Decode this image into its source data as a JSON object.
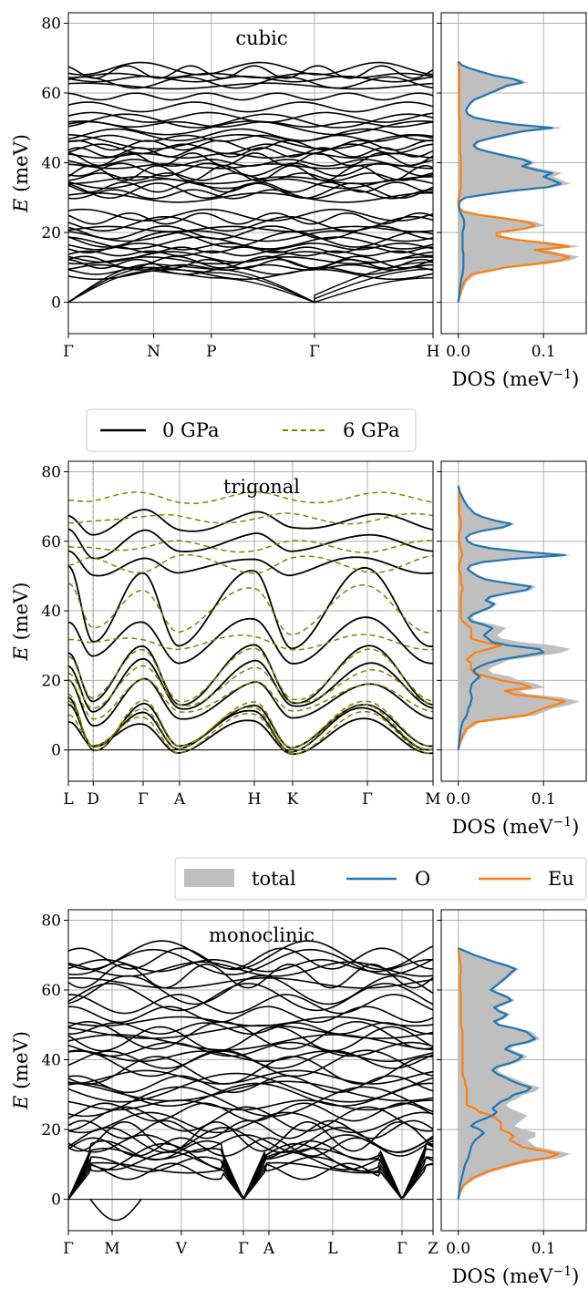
{
  "figure": {
    "energy_axis_label": "E (meV)",
    "dos_axis_label": "DOS (meV",
    "dos_axis_label_sup": "−1",
    "dos_axis_label_end": ")"
  },
  "legends": {
    "pressure": {
      "entries": [
        "0 GPa",
        "6 GPa"
      ]
    },
    "dos": {
      "entries": [
        "total",
        "O",
        "Eu"
      ]
    }
  },
  "colors": {
    "band_0gpa": "#000000",
    "band_6gpa": "#808000",
    "dos_total": "#bfbfbf",
    "dos_O": "#1f77b4",
    "dos_Eu": "#ff7f0e",
    "grid": "#b0b0b0"
  },
  "chart_data": [
    {
      "type": "line",
      "title": "cubic",
      "ylabel": "E (meV)",
      "ylim": [
        -9,
        83
      ],
      "yticks": [
        0,
        20,
        40,
        60,
        80
      ],
      "grid": true,
      "high_symmetry_points": [
        {
          "label": "Γ",
          "k": 0.0
        },
        {
          "label": "N",
          "k": 0.234
        },
        {
          "label": "P",
          "k": 0.392
        },
        {
          "label": "Γ",
          "k": 0.675
        },
        {
          "label": "H",
          "k": 1.0
        }
      ],
      "flat_band_energies_meV": [
        8,
        9,
        10,
        11,
        11.5,
        12,
        13,
        14,
        15,
        16,
        17,
        18,
        19,
        20,
        21,
        22.5,
        24,
        25,
        30,
        31,
        32,
        33,
        34,
        35,
        36,
        37,
        38,
        39,
        40,
        41,
        42,
        43,
        44,
        45,
        46,
        47,
        48,
        50,
        51,
        52,
        53,
        56,
        59,
        62,
        63,
        64,
        65,
        66,
        67
      ],
      "acoustic_branches": "three acoustic modes rising from 0 meV at Γ to about 9–11 meV at N and P",
      "dos": {
        "xlabel": "DOS (meV⁻¹)",
        "xlim": [
          -0.02,
          0.15
        ],
        "xticks": [
          0.0,
          0.1
        ],
        "energy_meV": [
          0,
          2,
          4,
          6,
          8,
          10,
          11,
          12,
          13,
          14,
          15,
          16,
          17,
          18,
          19,
          20,
          21,
          22,
          23,
          24,
          25,
          26,
          27,
          28,
          29,
          30,
          31,
          32,
          33,
          34,
          35,
          36,
          37,
          38,
          39,
          40,
          41,
          42,
          43,
          44,
          45,
          46,
          47,
          48,
          49,
          50,
          51,
          52,
          53,
          54,
          55,
          56,
          57,
          58,
          59,
          60,
          61,
          62,
          63,
          64,
          65,
          66,
          67,
          68,
          69
        ],
        "total": [
          0,
          0.003,
          0.006,
          0.01,
          0.02,
          0.06,
          0.1,
          0.13,
          0.14,
          0.12,
          0.1,
          0.14,
          0.11,
          0.07,
          0.05,
          0.05,
          0.08,
          0.1,
          0.09,
          0.06,
          0.03,
          0.008,
          0.002,
          0.001,
          0.002,
          0.01,
          0.04,
          0.07,
          0.11,
          0.13,
          0.12,
          0.11,
          0.12,
          0.1,
          0.08,
          0.09,
          0.08,
          0.06,
          0.04,
          0.025,
          0.02,
          0.025,
          0.04,
          0.06,
          0.08,
          0.12,
          0.07,
          0.04,
          0.02,
          0.012,
          0.01,
          0.012,
          0.015,
          0.02,
          0.03,
          0.04,
          0.05,
          0.06,
          0.08,
          0.07,
          0.045,
          0.03,
          0.015,
          0.005,
          0
        ],
        "O": [
          0,
          0.001,
          0.002,
          0.003,
          0.005,
          0.006,
          0.006,
          0.006,
          0.006,
          0.006,
          0.005,
          0.005,
          0.005,
          0.005,
          0.005,
          0.005,
          0.006,
          0.007,
          0.007,
          0.006,
          0.004,
          0.002,
          0.001,
          0.001,
          0.002,
          0.008,
          0.035,
          0.065,
          0.105,
          0.12,
          0.11,
          0.1,
          0.11,
          0.09,
          0.075,
          0.085,
          0.075,
          0.055,
          0.038,
          0.022,
          0.018,
          0.022,
          0.037,
          0.055,
          0.075,
          0.11,
          0.066,
          0.038,
          0.018,
          0.011,
          0.009,
          0.011,
          0.014,
          0.018,
          0.028,
          0.037,
          0.047,
          0.056,
          0.075,
          0.065,
          0.042,
          0.028,
          0.014,
          0.004,
          0
        ],
        "Eu": [
          0,
          0.002,
          0.004,
          0.007,
          0.015,
          0.055,
          0.09,
          0.12,
          0.13,
          0.11,
          0.09,
          0.13,
          0.1,
          0.065,
          0.045,
          0.045,
          0.075,
          0.09,
          0.08,
          0.055,
          0.025,
          0.006,
          0.001,
          0,
          0,
          0.001,
          0.002,
          0.002,
          0.003,
          0.003,
          0.003,
          0.003,
          0.003,
          0.003,
          0.003,
          0.003,
          0.003,
          0.003,
          0.002,
          0.002,
          0.002,
          0.002,
          0.002,
          0.002,
          0.002,
          0.002,
          0.002,
          0.002,
          0.001,
          0.001,
          0.001,
          0.001,
          0.001,
          0.001,
          0.001,
          0.001,
          0.001,
          0.001,
          0.001,
          0.001,
          0.001,
          0.001,
          0.001,
          0,
          0
        ]
      }
    },
    {
      "type": "line",
      "title": "trigonal",
      "ylabel": "E (meV)",
      "ylim": [
        -9,
        83
      ],
      "yticks": [
        0,
        20,
        40,
        60,
        80
      ],
      "grid": true,
      "high_symmetry_points": [
        {
          "label": "L",
          "k": 0.0
        },
        {
          "label": "D",
          "k": 0.068
        },
        {
          "label": "Γ",
          "k": 0.205
        },
        {
          "label": "A",
          "k": 0.305
        },
        {
          "label": "H",
          "k": 0.51
        },
        {
          "label": "K",
          "k": 0.615
        },
        {
          "label": "Γ",
          "k": 0.82
        },
        {
          "label": "M",
          "k": 1.0
        }
      ],
      "series": [
        {
          "name": "0 GPa",
          "style": "solid"
        },
        {
          "name": "6 GPa",
          "style": "dashed"
        }
      ],
      "band_anchor_energies_meV": {
        "0 GPa": [
          [
            8,
            12,
            14,
            20,
            25,
            29,
            37,
            52,
            56,
            63,
            68
          ],
          [
            0,
            0,
            0,
            8,
            12,
            14,
            26,
            30,
            50,
            56,
            63
          ]
        ],
        "6 GPa": [
          [
            10,
            13,
            15,
            20,
            23,
            28,
            32,
            47,
            52,
            58,
            66,
            73
          ],
          [
            0,
            0,
            0,
            10,
            13,
            15,
            30,
            34,
            55,
            59,
            67,
            72
          ]
        ]
      },
      "dos": {
        "xlabel": "DOS (meV⁻¹)",
        "xlim": [
          -0.02,
          0.15
        ],
        "xticks": [
          0.0,
          0.1
        ],
        "energy_meV": [
          0,
          2,
          4,
          6,
          8,
          10,
          12,
          13,
          14,
          15,
          16,
          17,
          18,
          19,
          20,
          21,
          22,
          23,
          24,
          25,
          26,
          27,
          28,
          29,
          30,
          31,
          32,
          33,
          34,
          35,
          36,
          37,
          38,
          39,
          40,
          41,
          42,
          43,
          44,
          45,
          46,
          47,
          48,
          49,
          50,
          51,
          52,
          53,
          54,
          55,
          56,
          57,
          58,
          59,
          60,
          61,
          62,
          63,
          64,
          65,
          66,
          67,
          68,
          70,
          72,
          74,
          76
        ],
        "total": [
          0,
          0.003,
          0.007,
          0.012,
          0.025,
          0.09,
          0.11,
          0.13,
          0.14,
          0.12,
          0.08,
          0.07,
          0.1,
          0.09,
          0.07,
          0.06,
          0.04,
          0.035,
          0.04,
          0.05,
          0.06,
          0.09,
          0.12,
          0.13,
          0.11,
          0.07,
          0.05,
          0.045,
          0.05,
          0.055,
          0.04,
          0.02,
          0.015,
          0.02,
          0.03,
          0.04,
          0.045,
          0.035,
          0.04,
          0.06,
          0.085,
          0.09,
          0.06,
          0.035,
          0.025,
          0.018,
          0.012,
          0.015,
          0.03,
          0.07,
          0.13,
          0.08,
          0.04,
          0.02,
          0.012,
          0.01,
          0.015,
          0.03,
          0.055,
          0.065,
          0.045,
          0.03,
          0.02,
          0.012,
          0.007,
          0.003,
          0
        ],
        "O": [
          0,
          0.001,
          0.002,
          0.003,
          0.005,
          0.01,
          0.012,
          0.014,
          0.015,
          0.016,
          0.015,
          0.014,
          0.015,
          0.016,
          0.02,
          0.025,
          0.02,
          0.018,
          0.025,
          0.035,
          0.05,
          0.075,
          0.1,
          0.095,
          0.06,
          0.04,
          0.035,
          0.03,
          0.035,
          0.04,
          0.03,
          0.015,
          0.012,
          0.017,
          0.027,
          0.037,
          0.042,
          0.032,
          0.037,
          0.057,
          0.08,
          0.085,
          0.057,
          0.032,
          0.022,
          0.016,
          0.011,
          0.014,
          0.028,
          0.067,
          0.125,
          0.076,
          0.037,
          0.018,
          0.011,
          0.009,
          0.014,
          0.028,
          0.052,
          0.062,
          0.042,
          0.028,
          0.019,
          0.011,
          0.006,
          0.002,
          0
        ],
        "Eu": [
          0,
          0.002,
          0.005,
          0.009,
          0.02,
          0.08,
          0.1,
          0.115,
          0.125,
          0.1,
          0.065,
          0.055,
          0.085,
          0.075,
          0.05,
          0.035,
          0.02,
          0.015,
          0.015,
          0.015,
          0.01,
          0.015,
          0.02,
          0.035,
          0.05,
          0.03,
          0.015,
          0.015,
          0.015,
          0.015,
          0.01,
          0.005,
          0.003,
          0.003,
          0.003,
          0.003,
          0.003,
          0.003,
          0.003,
          0.003,
          0.005,
          0.005,
          0.003,
          0.003,
          0.003,
          0.002,
          0.001,
          0.001,
          0.002,
          0.003,
          0.005,
          0.004,
          0.003,
          0.002,
          0.001,
          0.001,
          0.001,
          0.002,
          0.003,
          0.003,
          0.003,
          0.002,
          0.001,
          0.001,
          0.001,
          0.001,
          0
        ]
      }
    },
    {
      "type": "line",
      "title": "monoclinic",
      "ylabel": "E (meV)",
      "ylim": [
        -9,
        83
      ],
      "yticks": [
        0,
        20,
        40,
        60,
        80
      ],
      "grid": true,
      "high_symmetry_points": [
        {
          "label": "Γ",
          "k": 0.0
        },
        {
          "label": "M",
          "k": 0.12
        },
        {
          "label": "V",
          "k": 0.31
        },
        {
          "label": "Γ",
          "k": 0.48
        },
        {
          "label": "A",
          "k": 0.55
        },
        {
          "label": "L",
          "k": 0.725
        },
        {
          "label": "Γ",
          "k": 0.915
        },
        {
          "label": "Z",
          "k": 1.0
        }
      ],
      "band_anchor_energies_meV": [
        8,
        9,
        10,
        11,
        12,
        13,
        14,
        15,
        16,
        17,
        18,
        20,
        22,
        23,
        25,
        27,
        28,
        30,
        31,
        32,
        33,
        35,
        37,
        39,
        40,
        41,
        43,
        45,
        46,
        47,
        48,
        49,
        51,
        53,
        56,
        58,
        60,
        62,
        64,
        66,
        67,
        68,
        69,
        70
      ],
      "imaginary_mode_min_meV": -6,
      "dos": {
        "xlabel": "DOS (meV⁻¹)",
        "xlim": [
          -0.02,
          0.15
        ],
        "xticks": [
          0.0,
          0.1
        ],
        "energy_meV": [
          0,
          2,
          4,
          6,
          8,
          10,
          11,
          12,
          13,
          14,
          15,
          16,
          17,
          18,
          19,
          20,
          21,
          22,
          23,
          24,
          25,
          26,
          27,
          28,
          29,
          30,
          31,
          32,
          33,
          34,
          35,
          36,
          37,
          38,
          39,
          40,
          41,
          42,
          43,
          44,
          45,
          46,
          47,
          48,
          49,
          50,
          51,
          52,
          53,
          54,
          55,
          56,
          57,
          58,
          59,
          60,
          61,
          62,
          63,
          64,
          65,
          66,
          67,
          68,
          70,
          72
        ],
        "total": [
          0,
          0.003,
          0.008,
          0.02,
          0.04,
          0.07,
          0.09,
          0.12,
          0.13,
          0.11,
          0.09,
          0.085,
          0.08,
          0.09,
          0.09,
          0.075,
          0.065,
          0.07,
          0.075,
          0.08,
          0.07,
          0.06,
          0.055,
          0.06,
          0.07,
          0.075,
          0.09,
          0.095,
          0.08,
          0.07,
          0.06,
          0.05,
          0.045,
          0.05,
          0.065,
          0.075,
          0.08,
          0.07,
          0.06,
          0.065,
          0.085,
          0.095,
          0.09,
          0.085,
          0.07,
          0.05,
          0.045,
          0.055,
          0.06,
          0.05,
          0.045,
          0.055,
          0.065,
          0.06,
          0.05,
          0.04,
          0.045,
          0.05,
          0.055,
          0.06,
          0.065,
          0.07,
          0.06,
          0.045,
          0.02,
          0
        ],
        "O": [
          0,
          0.001,
          0.002,
          0.004,
          0.006,
          0.008,
          0.01,
          0.012,
          0.013,
          0.014,
          0.015,
          0.017,
          0.02,
          0.025,
          0.03,
          0.025,
          0.015,
          0.02,
          0.03,
          0.04,
          0.045,
          0.04,
          0.045,
          0.05,
          0.06,
          0.065,
          0.08,
          0.085,
          0.072,
          0.062,
          0.054,
          0.045,
          0.04,
          0.045,
          0.06,
          0.07,
          0.075,
          0.065,
          0.055,
          0.06,
          0.08,
          0.09,
          0.085,
          0.08,
          0.066,
          0.047,
          0.042,
          0.052,
          0.057,
          0.047,
          0.042,
          0.052,
          0.062,
          0.057,
          0.047,
          0.038,
          0.043,
          0.048,
          0.053,
          0.058,
          0.062,
          0.067,
          0.057,
          0.043,
          0.019,
          0
        ],
        "Eu": [
          0,
          0.002,
          0.006,
          0.016,
          0.034,
          0.062,
          0.08,
          0.108,
          0.117,
          0.096,
          0.075,
          0.068,
          0.06,
          0.065,
          0.06,
          0.05,
          0.05,
          0.05,
          0.045,
          0.04,
          0.025,
          0.02,
          0.01,
          0.01,
          0.01,
          0.01,
          0.01,
          0.01,
          0.008,
          0.008,
          0.006,
          0.005,
          0.005,
          0.005,
          0.005,
          0.005,
          0.005,
          0.005,
          0.005,
          0.005,
          0.005,
          0.005,
          0.005,
          0.005,
          0.004,
          0.003,
          0.003,
          0.003,
          0.003,
          0.003,
          0.003,
          0.003,
          0.003,
          0.003,
          0.003,
          0.002,
          0.002,
          0.002,
          0.002,
          0.002,
          0.003,
          0.003,
          0.003,
          0.002,
          0.001,
          0
        ]
      }
    }
  ]
}
